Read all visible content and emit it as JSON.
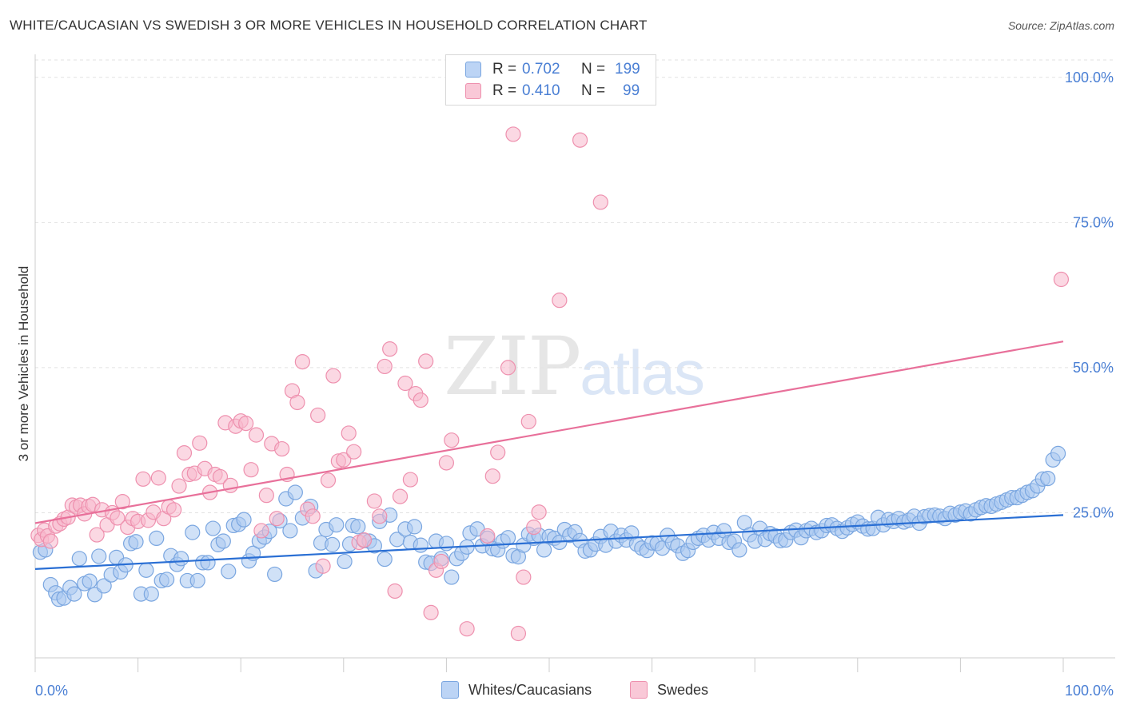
{
  "title": "WHITE/CAUCASIAN VS SWEDISH 3 OR MORE VEHICLES IN HOUSEHOLD CORRELATION CHART",
  "source": "Source: ZipAtlas.com",
  "watermark": {
    "zip": "ZIP",
    "atlas": "atlas"
  },
  "legend": {
    "white": {
      "r_label": "R =",
      "r_value": "0.702",
      "n_label": "N =",
      "n_value": "199"
    },
    "swede": {
      "r_label": "R =",
      "r_value": "0.410",
      "n_label": "N =",
      "n_value": "99"
    }
  },
  "bottom_legend": {
    "white": "Whites/Caucasians",
    "swede": "Swedes"
  },
  "colors": {
    "white_fill": "#aac8f0",
    "white_stroke": "#7aa6e0",
    "white_line": "#2a6fd4",
    "swede_fill": "#f7b8cc",
    "swede_stroke": "#ee90ae",
    "swede_line": "#e8709a",
    "axis_label": "#4a7fd4"
  },
  "chart_data": {
    "type": "scatter",
    "title": "WHITE/CAUCASIAN VS SWEDISH 3 OR MORE VEHICLES IN HOUSEHOLD CORRELATION CHART",
    "xlabel": "",
    "ylabel": "3 or more Vehicles in Household",
    "xlim": [
      0,
      100
    ],
    "ylim": [
      0,
      103
    ],
    "x_tick_labels": [
      "0.0%",
      "100.0%"
    ],
    "y_tick_labels": [
      "25.0%",
      "50.0%",
      "75.0%",
      "100.0%"
    ],
    "y_ticks": [
      25,
      50,
      75,
      100
    ],
    "series": [
      {
        "name": "Whites/Caucasians",
        "r": 0.702,
        "n": 199,
        "trend": {
          "x0": 0,
          "y0": 15.3,
          "x1": 100,
          "y1": 24.6
        },
        "points": [
          [
            0.5,
            18.2
          ],
          [
            1,
            18.6
          ],
          [
            1.5,
            12.6
          ],
          [
            2,
            11.2
          ],
          [
            2.3,
            10.1
          ],
          [
            2.8,
            10.3
          ],
          [
            3.4,
            12.1
          ],
          [
            3.8,
            11.0
          ],
          [
            4.3,
            17.1
          ],
          [
            4.8,
            12.8
          ],
          [
            5.3,
            13.2
          ],
          [
            5.8,
            10.9
          ],
          [
            6.2,
            17.5
          ],
          [
            6.7,
            12.4
          ],
          [
            7.4,
            14.3
          ],
          [
            7.9,
            17.3
          ],
          [
            8.3,
            14.8
          ],
          [
            8.8,
            16.0
          ],
          [
            9.3,
            19.7
          ],
          [
            9.8,
            20.0
          ],
          [
            10.3,
            11.0
          ],
          [
            10.8,
            15.1
          ],
          [
            11.3,
            11.0
          ],
          [
            11.8,
            20.6
          ],
          [
            12.3,
            13.3
          ],
          [
            12.8,
            13.5
          ],
          [
            13.2,
            17.6
          ],
          [
            13.8,
            16.1
          ],
          [
            14.2,
            17.1
          ],
          [
            14.8,
            13.3
          ],
          [
            15.3,
            21.6
          ],
          [
            15.8,
            13.3
          ],
          [
            16.3,
            16.4
          ],
          [
            16.8,
            16.4
          ],
          [
            17.3,
            22.3
          ],
          [
            17.8,
            19.5
          ],
          [
            18.3,
            20.1
          ],
          [
            18.8,
            14.9
          ],
          [
            19.3,
            22.8
          ],
          [
            19.8,
            23.0
          ],
          [
            20.3,
            23.8
          ],
          [
            20.8,
            16.7
          ],
          [
            21.2,
            18.0
          ],
          [
            21.8,
            20.1
          ],
          [
            22.3,
            20.8
          ],
          [
            22.8,
            21.8
          ],
          [
            23.3,
            14.4
          ],
          [
            23.8,
            23.6
          ],
          [
            24.4,
            27.4
          ],
          [
            24.8,
            21.9
          ],
          [
            25.3,
            28.5
          ],
          [
            26.0,
            24.1
          ],
          [
            26.8,
            26.1
          ],
          [
            27.3,
            15.0
          ],
          [
            27.8,
            19.8
          ],
          [
            28.3,
            22.1
          ],
          [
            28.9,
            19.5
          ],
          [
            29.3,
            22.9
          ],
          [
            30.1,
            16.6
          ],
          [
            30.6,
            19.6
          ],
          [
            30.9,
            22.8
          ],
          [
            31.4,
            22.6
          ],
          [
            32.0,
            20.2
          ],
          [
            32.5,
            20.1
          ],
          [
            33.0,
            19.3
          ],
          [
            33.5,
            23.5
          ],
          [
            34.0,
            17.0
          ],
          [
            34.5,
            24.6
          ],
          [
            35.2,
            20.4
          ],
          [
            36.0,
            22.2
          ],
          [
            36.5,
            19.9
          ],
          [
            36.9,
            22.6
          ],
          [
            37.5,
            19.4
          ],
          [
            38.0,
            16.5
          ],
          [
            38.5,
            16.3
          ],
          [
            39.0,
            20.1
          ],
          [
            39.5,
            17.1
          ],
          [
            40.0,
            19.7
          ],
          [
            40.5,
            13.9
          ],
          [
            41.0,
            17.1
          ],
          [
            41.5,
            18.0
          ],
          [
            42.0,
            19.1
          ],
          [
            42.3,
            21.5
          ],
          [
            43.0,
            22.2
          ],
          [
            43.5,
            19.3
          ],
          [
            44.0,
            20.6
          ],
          [
            44.5,
            18.8
          ],
          [
            45.0,
            18.6
          ],
          [
            45.5,
            20.1
          ],
          [
            46.0,
            20.7
          ],
          [
            46.5,
            17.6
          ],
          [
            47.0,
            17.4
          ],
          [
            47.5,
            19.4
          ],
          [
            48.0,
            21.3
          ],
          [
            48.5,
            20.6
          ],
          [
            49.0,
            21.1
          ],
          [
            49.5,
            18.6
          ],
          [
            50.0,
            20.9
          ],
          [
            50.5,
            20.6
          ],
          [
            51.0,
            19.9
          ],
          [
            51.5,
            22.1
          ],
          [
            52.0,
            21.1
          ],
          [
            52.5,
            21.7
          ],
          [
            53.0,
            20.2
          ],
          [
            53.5,
            18.4
          ],
          [
            54.0,
            18.6
          ],
          [
            54.5,
            19.6
          ],
          [
            55.0,
            20.9
          ],
          [
            55.5,
            19.4
          ],
          [
            56.0,
            21.8
          ],
          [
            56.5,
            20.1
          ],
          [
            57.0,
            21.1
          ],
          [
            57.5,
            20.3
          ],
          [
            58.0,
            21.5
          ],
          [
            58.5,
            19.6
          ],
          [
            59.0,
            18.9
          ],
          [
            59.5,
            18.5
          ],
          [
            60.0,
            19.8
          ],
          [
            60.5,
            19.7
          ],
          [
            61.0,
            18.9
          ],
          [
            61.5,
            21.1
          ],
          [
            62.0,
            19.8
          ],
          [
            62.5,
            19.3
          ],
          [
            63.0,
            18.0
          ],
          [
            63.5,
            18.5
          ],
          [
            64.0,
            19.9
          ],
          [
            64.5,
            20.6
          ],
          [
            65.0,
            21.1
          ],
          [
            65.5,
            20.3
          ],
          [
            66.0,
            21.6
          ],
          [
            66.5,
            20.6
          ],
          [
            67.0,
            21.9
          ],
          [
            67.5,
            19.9
          ],
          [
            68.0,
            20.1
          ],
          [
            68.5,
            18.6
          ],
          [
            69.0,
            23.3
          ],
          [
            69.5,
            21.2
          ],
          [
            70.0,
            20.1
          ],
          [
            70.5,
            22.3
          ],
          [
            71.0,
            20.4
          ],
          [
            71.5,
            21.4
          ],
          [
            72.0,
            21.0
          ],
          [
            72.5,
            20.2
          ],
          [
            73.0,
            20.3
          ],
          [
            73.5,
            21.6
          ],
          [
            74.0,
            22.0
          ],
          [
            74.5,
            20.7
          ],
          [
            75.0,
            21.9
          ],
          [
            75.5,
            22.3
          ],
          [
            76.0,
            21.6
          ],
          [
            76.5,
            21.9
          ],
          [
            77.0,
            22.8
          ],
          [
            77.5,
            22.9
          ],
          [
            78.0,
            22.3
          ],
          [
            78.5,
            21.8
          ],
          [
            79.0,
            22.4
          ],
          [
            79.5,
            23.0
          ],
          [
            80.0,
            23.4
          ],
          [
            80.5,
            22.7
          ],
          [
            81.0,
            22.2
          ],
          [
            81.5,
            22.3
          ],
          [
            82.0,
            24.2
          ],
          [
            82.5,
            22.9
          ],
          [
            83.0,
            23.8
          ],
          [
            83.5,
            23.5
          ],
          [
            84.0,
            24.0
          ],
          [
            84.5,
            23.4
          ],
          [
            85.0,
            23.7
          ],
          [
            85.5,
            24.4
          ],
          [
            86.0,
            23.2
          ],
          [
            86.5,
            24.3
          ],
          [
            87.0,
            24.5
          ],
          [
            87.5,
            24.6
          ],
          [
            88.0,
            24.4
          ],
          [
            88.5,
            24.0
          ],
          [
            89.0,
            24.9
          ],
          [
            89.5,
            24.6
          ],
          [
            90.0,
            25.1
          ],
          [
            90.5,
            25.3
          ],
          [
            91.0,
            24.8
          ],
          [
            91.5,
            25.5
          ],
          [
            92.0,
            25.9
          ],
          [
            92.5,
            26.2
          ],
          [
            93.0,
            26.1
          ],
          [
            93.5,
            26.5
          ],
          [
            94.0,
            26.8
          ],
          [
            94.5,
            27.2
          ],
          [
            95.0,
            27.6
          ],
          [
            95.5,
            27.6
          ],
          [
            96.0,
            28.0
          ],
          [
            96.5,
            28.5
          ],
          [
            97.0,
            28.8
          ],
          [
            97.5,
            29.6
          ],
          [
            98.0,
            30.8
          ],
          [
            98.5,
            30.9
          ],
          [
            99.0,
            34.1
          ],
          [
            99.5,
            35.2
          ]
        ]
      },
      {
        "name": "Swedes",
        "r": 0.41,
        "n": 99,
        "trend": {
          "x0": 0,
          "y0": 23.2,
          "x1": 100,
          "y1": 54.5
        },
        "points": [
          [
            0.3,
            21.1
          ],
          [
            0.6,
            20.4
          ],
          [
            0.9,
            22.0
          ],
          [
            1.2,
            21.0
          ],
          [
            1.5,
            20.1
          ],
          [
            2.0,
            22.7
          ],
          [
            2.4,
            23.1
          ],
          [
            2.8,
            23.9
          ],
          [
            3.2,
            24.2
          ],
          [
            3.6,
            26.3
          ],
          [
            4.0,
            26.0
          ],
          [
            4.4,
            26.3
          ],
          [
            4.8,
            24.8
          ],
          [
            5.2,
            26.1
          ],
          [
            5.6,
            26.4
          ],
          [
            6.0,
            21.2
          ],
          [
            6.5,
            25.5
          ],
          [
            7.0,
            22.9
          ],
          [
            7.5,
            25.0
          ],
          [
            8.0,
            24.1
          ],
          [
            8.5,
            26.9
          ],
          [
            9.0,
            22.5
          ],
          [
            9.5,
            24.0
          ],
          [
            10.0,
            23.5
          ],
          [
            10.5,
            30.8
          ],
          [
            11.0,
            23.7
          ],
          [
            11.5,
            25.1
          ],
          [
            12.0,
            31.0
          ],
          [
            12.5,
            24.0
          ],
          [
            13.0,
            26.0
          ],
          [
            13.5,
            25.5
          ],
          [
            14.0,
            29.6
          ],
          [
            14.5,
            35.3
          ],
          [
            15.0,
            31.6
          ],
          [
            15.5,
            31.8
          ],
          [
            16.0,
            37.0
          ],
          [
            16.5,
            32.6
          ],
          [
            17.0,
            28.5
          ],
          [
            17.5,
            31.6
          ],
          [
            18.0,
            31.2
          ],
          [
            18.5,
            40.5
          ],
          [
            19.0,
            29.7
          ],
          [
            19.5,
            39.9
          ],
          [
            20.0,
            40.8
          ],
          [
            20.5,
            40.4
          ],
          [
            21.0,
            32.4
          ],
          [
            21.5,
            38.4
          ],
          [
            22.0,
            21.9
          ],
          [
            22.5,
            28.0
          ],
          [
            23.0,
            36.9
          ],
          [
            23.5,
            24.0
          ],
          [
            24.0,
            36.0
          ],
          [
            24.5,
            31.6
          ],
          [
            25.0,
            46.0
          ],
          [
            25.5,
            44.0
          ],
          [
            26.0,
            51.0
          ],
          [
            26.5,
            25.6
          ],
          [
            27.0,
            24.4
          ],
          [
            27.5,
            41.8
          ],
          [
            28.0,
            15.8
          ],
          [
            28.5,
            30.6
          ],
          [
            29.0,
            48.6
          ],
          [
            29.5,
            33.9
          ],
          [
            30.0,
            34.1
          ],
          [
            30.5,
            38.7
          ],
          [
            31.0,
            35.5
          ],
          [
            31.5,
            19.9
          ],
          [
            32.0,
            20.3
          ],
          [
            33.0,
            27.0
          ],
          [
            33.5,
            24.4
          ],
          [
            34.0,
            50.2
          ],
          [
            34.5,
            53.2
          ],
          [
            35.0,
            11.5
          ],
          [
            35.5,
            27.8
          ],
          [
            36.0,
            47.3
          ],
          [
            36.5,
            30.7
          ],
          [
            37.0,
            45.5
          ],
          [
            37.5,
            44.4
          ],
          [
            38.0,
            51.1
          ],
          [
            38.5,
            7.8
          ],
          [
            39.0,
            15.1
          ],
          [
            39.5,
            16.6
          ],
          [
            40.0,
            33.6
          ],
          [
            40.5,
            37.5
          ],
          [
            42.0,
            5.0
          ],
          [
            44.0,
            21.0
          ],
          [
            44.5,
            31.3
          ],
          [
            45.0,
            35.4
          ],
          [
            46.0,
            50.0
          ],
          [
            46.5,
            90.2
          ],
          [
            47.0,
            4.2
          ],
          [
            47.5,
            13.9
          ],
          [
            48.0,
            40.7
          ],
          [
            48.5,
            22.5
          ],
          [
            49.0,
            25.1
          ],
          [
            51.0,
            61.6
          ],
          [
            53.0,
            89.2
          ],
          [
            55.0,
            78.5
          ],
          [
            99.8,
            65.2
          ]
        ]
      }
    ]
  }
}
